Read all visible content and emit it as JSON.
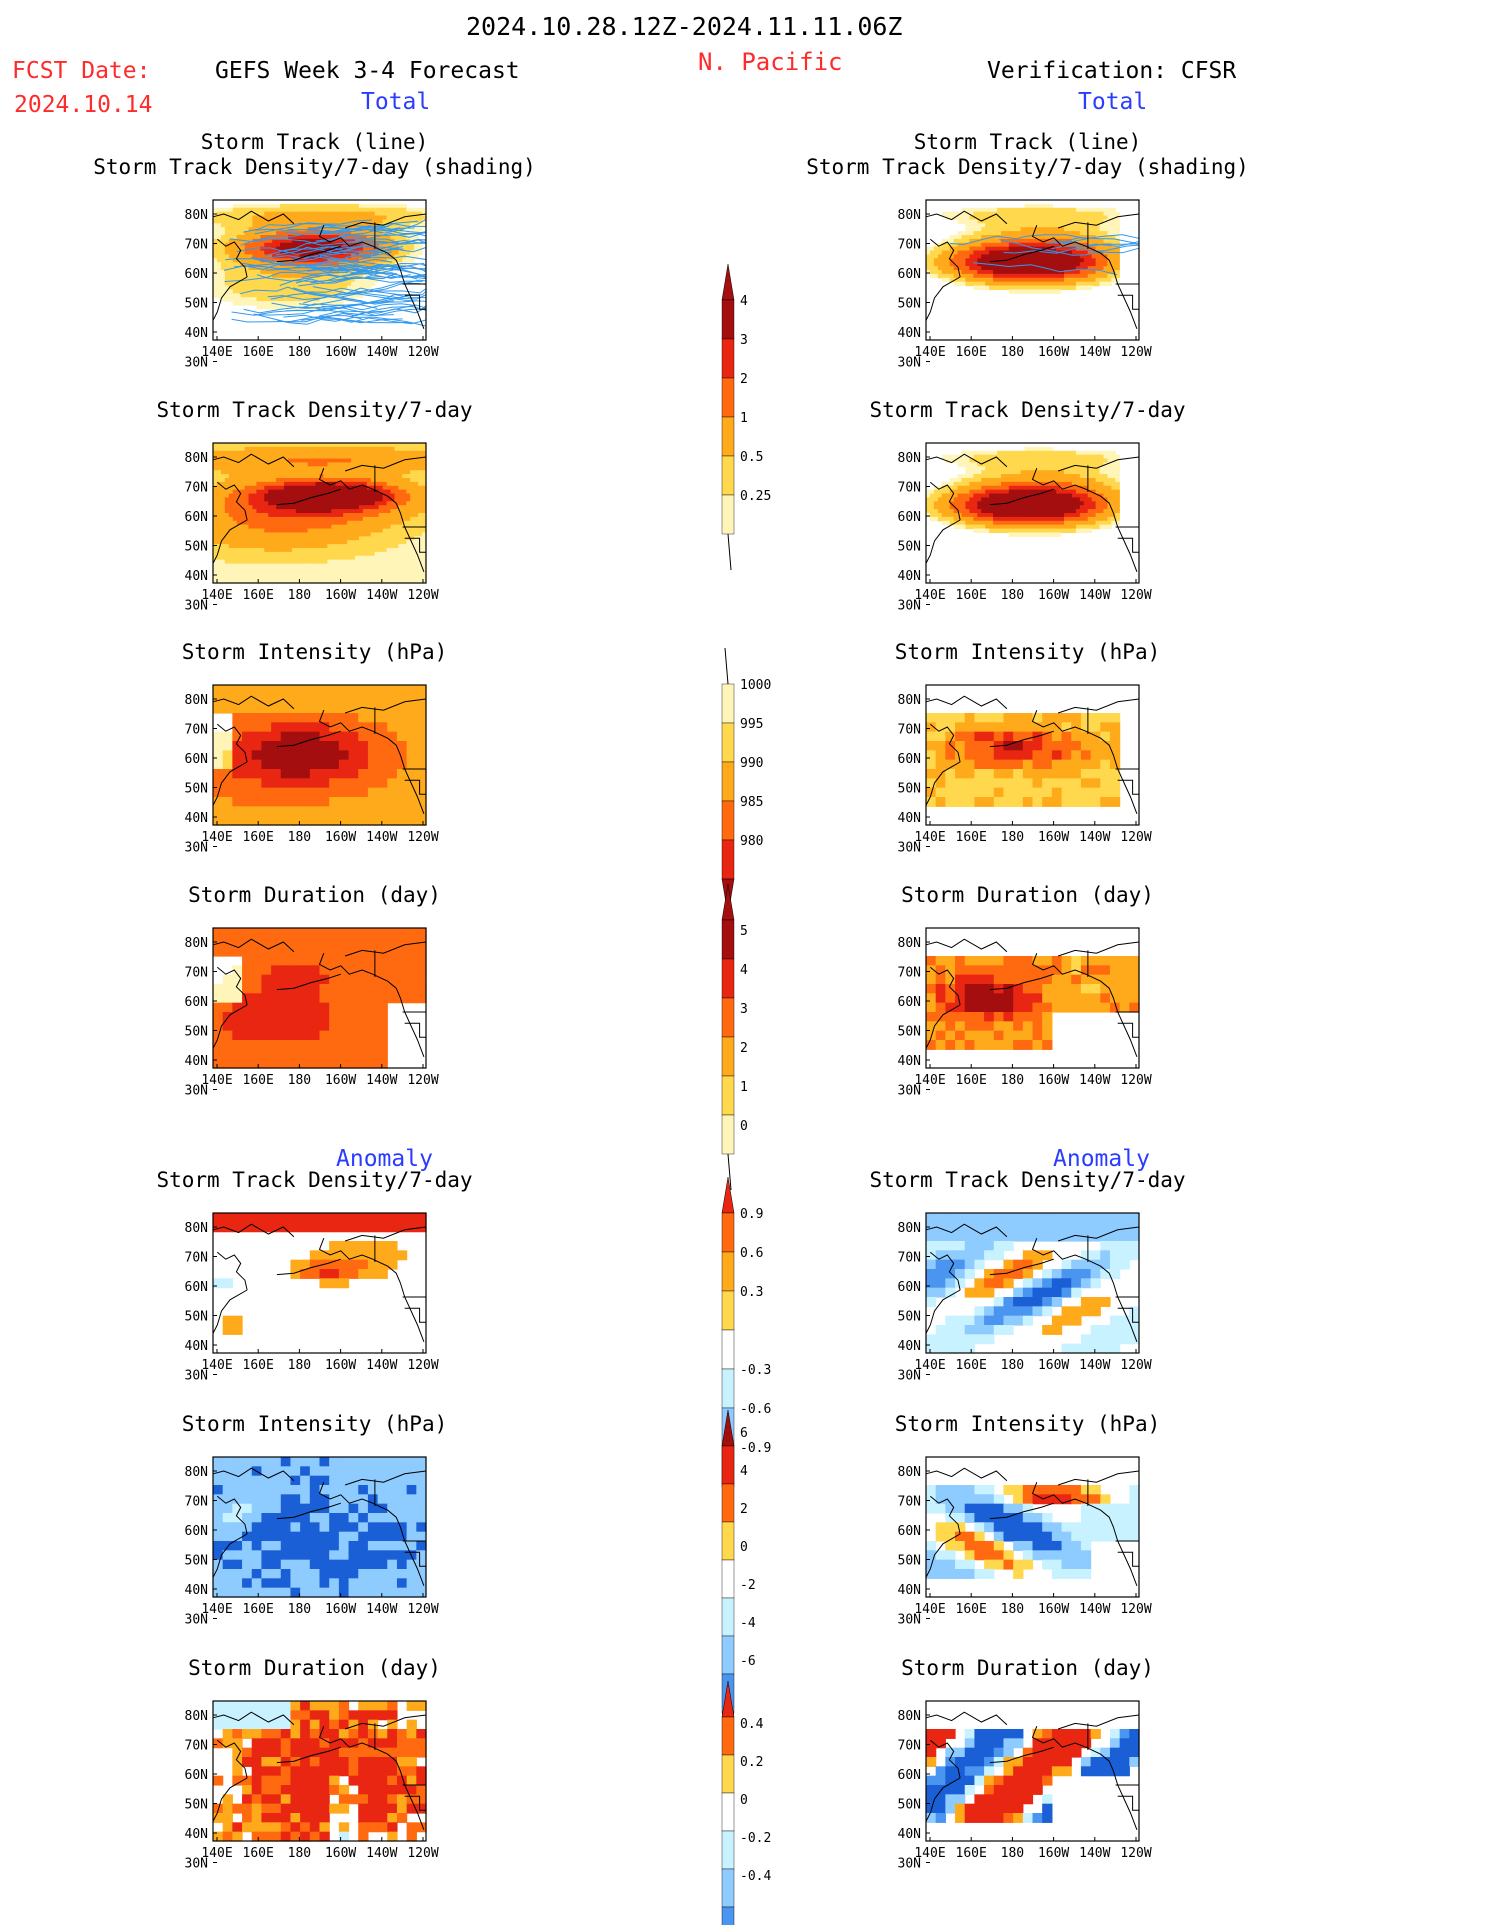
{
  "header": {
    "date_range": "2024.10.28.12Z-2024.11.11.06Z",
    "fcst_label": "FCST Date:",
    "fcst_date": "2024.10.14",
    "model": "GEFS Week 3-4 Forecast",
    "region": "N. Pacific",
    "verification": "Verification: CFSR",
    "total_left": "Total",
    "total_right": "Total",
    "anomaly_left": "Anomaly",
    "anomaly_right": "Anomaly"
  },
  "panel_titles": {
    "track_line": "Storm Track (line)",
    "track_shading": "Storm Track Density/7-day (shading)",
    "density": "Storm Track Density/7-day",
    "intensity": "Storm Intensity (hPa)",
    "duration": "Storm Duration (day)"
  },
  "axes": {
    "lon_ticks": [
      "140E",
      "160E",
      "180",
      "160W",
      "140W",
      "120W"
    ],
    "lat_ticks": [
      "80N",
      "70N",
      "60N",
      "50N",
      "40N",
      "30N"
    ]
  },
  "colorbars": {
    "track_density_total": [
      "0.25",
      "0.5",
      "1",
      "2",
      "3",
      "4"
    ],
    "intensity_total": [
      "1000",
      "995",
      "990",
      "985",
      "980"
    ],
    "duration_total": [
      "0",
      "1",
      "2",
      "3",
      "4",
      "5"
    ],
    "density_anomaly": [
      "0.9",
      "0.6",
      "0.3",
      "-0.3",
      "-0.6",
      "-0.9"
    ],
    "intensity_anomaly": [
      "6",
      "4",
      "2",
      "0",
      "-2",
      "-4",
      "-6"
    ],
    "duration_anomaly": [
      "0.4",
      "0.2",
      "0",
      "-0.2",
      "-0.4"
    ]
  },
  "colors": {
    "red_label": "#ff2a2a",
    "blue_label": "#2a3cff",
    "track_line": "#3399ee",
    "warm_scale": [
      "#fff5b8",
      "#ffd84d",
      "#ffaa1a",
      "#ff6a10",
      "#e82612",
      "#a50e0e"
    ],
    "cool_scale": [
      "#c8f2ff",
      "#8ecbff",
      "#4a95f0",
      "#1a5fd6"
    ]
  }
}
